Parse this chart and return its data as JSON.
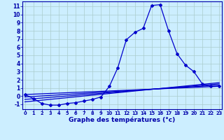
{
  "title": "Graphe des températures (°c)",
  "bg_color": "#cceeff",
  "grid_color": "#aacccc",
  "line_color": "#0000cc",
  "x_ticks": [
    0,
    1,
    2,
    3,
    4,
    5,
    6,
    7,
    8,
    9,
    10,
    11,
    12,
    13,
    14,
    15,
    16,
    17,
    18,
    19,
    20,
    21,
    22,
    23
  ],
  "y_ticks": [
    -1,
    0,
    1,
    2,
    3,
    4,
    5,
    6,
    7,
    8,
    9,
    10,
    11
  ],
  "ylim": [
    -1.6,
    11.6
  ],
  "xlim": [
    -0.3,
    23.3
  ],
  "series_main": {
    "x": [
      0,
      1,
      2,
      3,
      4,
      5,
      6,
      7,
      8,
      9,
      10,
      11,
      12,
      13,
      14,
      15,
      16,
      17,
      18,
      19,
      20,
      21,
      22,
      23
    ],
    "y": [
      0.2,
      -0.3,
      -0.9,
      -1.1,
      -1.1,
      -0.9,
      -0.8,
      -0.6,
      -0.4,
      -0.1,
      1.2,
      3.5,
      6.9,
      7.8,
      8.3,
      11.1,
      11.2,
      8.0,
      5.2,
      3.8,
      3.0,
      1.5,
      1.2,
      1.2
    ]
  },
  "series_flat": [
    {
      "x": [
        0,
        23
      ],
      "y": [
        0.2,
        1.2
      ]
    },
    {
      "x": [
        0,
        23
      ],
      "y": [
        -0.1,
        1.35
      ]
    },
    {
      "x": [
        0,
        23
      ],
      "y": [
        -0.4,
        1.5
      ]
    },
    {
      "x": [
        0,
        23
      ],
      "y": [
        -0.7,
        1.65
      ]
    }
  ],
  "marker": "D",
  "markersize": 2.0,
  "linewidth": 0.9
}
